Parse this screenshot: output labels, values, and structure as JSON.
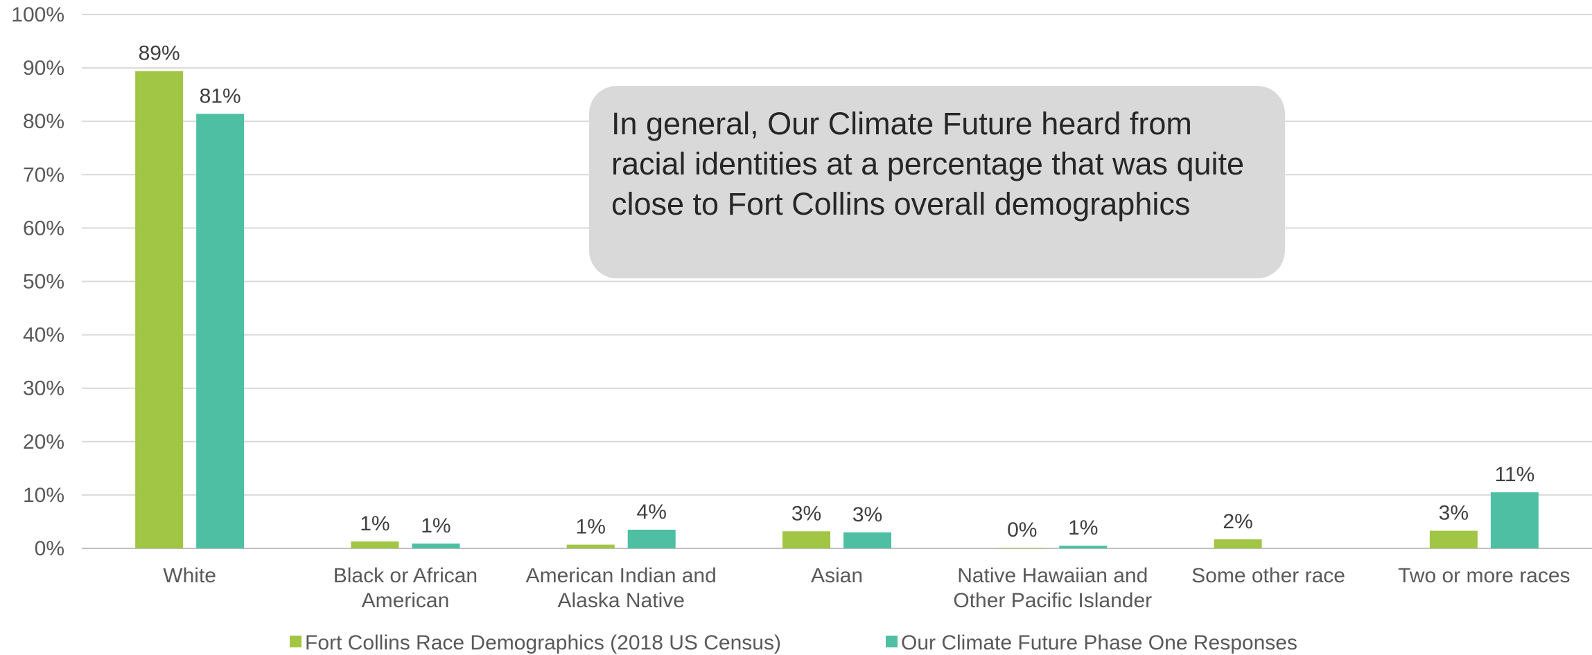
{
  "chart_data": {
    "type": "bar",
    "title": "",
    "xlabel": "",
    "ylabel": "",
    "ylim": [
      0,
      100
    ],
    "yticks": [
      "0%",
      "10%",
      "20%",
      "30%",
      "40%",
      "50%",
      "60%",
      "70%",
      "80%",
      "90%",
      "100%"
    ],
    "grid": true,
    "legend_position": "bottom",
    "categories": [
      [
        "White"
      ],
      [
        "Black or African",
        "American"
      ],
      [
        "American Indian and",
        "Alaska Native"
      ],
      [
        "Asian"
      ],
      [
        "Native Hawaiian and",
        "Other Pacific Islander"
      ],
      [
        "Some other race"
      ],
      [
        "Two or more races"
      ]
    ],
    "series": [
      {
        "name": "Fort Collins Race Demographics (2018 US Census)",
        "color": "#a1c544",
        "values": [
          89.4,
          1.3,
          0.7,
          3.2,
          0.1,
          1.7,
          3.3
        ],
        "labels": [
          "89%",
          "1%",
          "1%",
          "3%",
          "0%",
          "2%",
          "3%"
        ]
      },
      {
        "name": "Our Climate Future Phase One Responses",
        "color": "#4fbfa3",
        "values": [
          81.4,
          0.9,
          3.5,
          3.0,
          0.5,
          0.0,
          10.5
        ],
        "labels": [
          "81%",
          "1%",
          "4%",
          "3%",
          "1%",
          "",
          "11%"
        ]
      }
    ]
  },
  "callout": {
    "text": "In general, Our Climate Future heard from racial identities at a percentage that was quite close to Fort Collins overall demographics"
  }
}
